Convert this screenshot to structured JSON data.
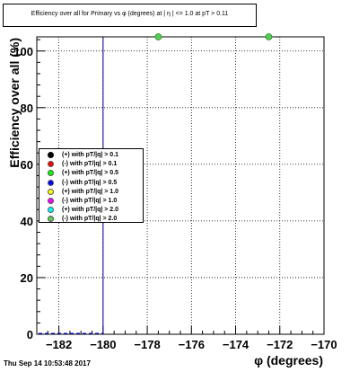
{
  "chart_data": {
    "type": "scatter",
    "title": "Efficiency over all for Primary vs φ (degrees) at | η | <= 1.0 at pT > 0.11",
    "xlabel": "φ (degrees)",
    "ylabel": "Efficiency over all (%)",
    "xlim": [
      -183,
      -170
    ],
    "ylim": [
      0,
      105
    ],
    "x_ticks": [
      -182,
      -180,
      -178,
      -176,
      -174,
      -172,
      -170
    ],
    "x_tick_labels": [
      "−182",
      "−180",
      "−178",
      "−176",
      "−174",
      "−172",
      "−170"
    ],
    "y_ticks": [
      0,
      20,
      40,
      60,
      80,
      100
    ],
    "y_tick_labels": [
      "0",
      "20",
      "40",
      "60",
      "80",
      "100"
    ],
    "grid": true,
    "vertical_line_x": -180,
    "legend_position": "middle-left",
    "series": [
      {
        "name": "(+) with pT/|q| > 0.1",
        "color": "#000000",
        "x": [],
        "y": []
      },
      {
        "name": "(-) with pT/|q| > 0.1",
        "color": "#ff0000",
        "x": [],
        "y": []
      },
      {
        "name": "(+) with pT/|q| > 0.5",
        "color": "#00ff00",
        "x": [],
        "y": []
      },
      {
        "name": "(-) with pT/|q| > 0.5",
        "color": "#0000ff",
        "x": [],
        "y": []
      },
      {
        "name": "(+) with pT/|q| > 1.0",
        "color": "#ffff00",
        "x": [],
        "y": []
      },
      {
        "name": "(-) with pT/|q| > 1.0",
        "color": "#ff00ff",
        "x": [],
        "y": []
      },
      {
        "name": "(+) with pT/|q| > 2.0",
        "color": "#00ffff",
        "x": [],
        "y": []
      },
      {
        "name": "(-) with pT/|q| > 2.0",
        "color": "#55cc55",
        "x": [
          -177.5,
          -172.5
        ],
        "y": [
          105,
          105
        ]
      }
    ]
  },
  "timestamp": "Thu Sep 14 10:53:48 2017"
}
